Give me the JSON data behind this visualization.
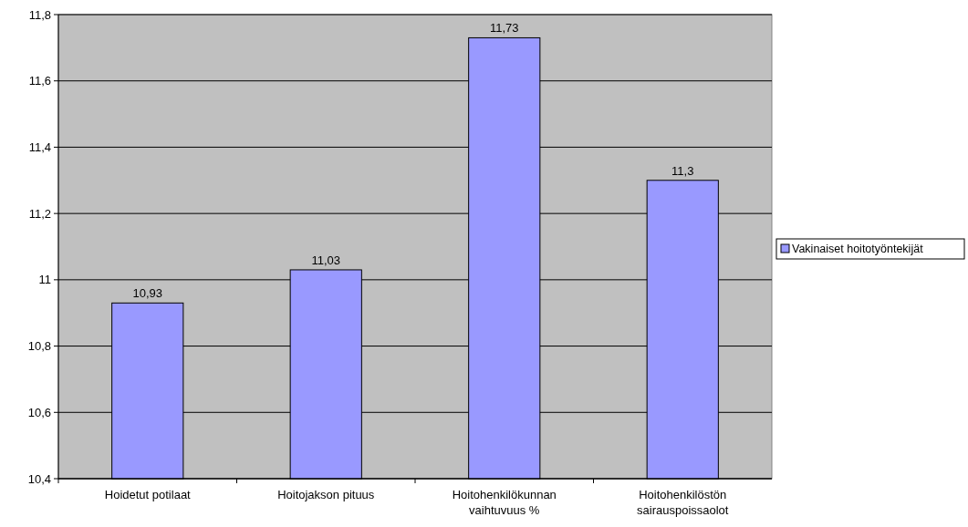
{
  "chart_data": {
    "type": "bar",
    "categories": [
      "Hoidetut potilaat",
      "Hoitojakson pituus",
      "Hoitohenkilökunnan vaihtuvuus %",
      "Hoitohenkilöstön sairauspoissaolot"
    ],
    "series": [
      {
        "name": "Vakinaiset hoitotyöntekijät",
        "color": "#9999ff",
        "values": [
          10.93,
          11.03,
          11.73,
          11.3
        ],
        "value_labels": [
          "10,93",
          "11,03",
          "11,73",
          "11,3"
        ]
      }
    ],
    "ylim": [
      10.4,
      11.8
    ],
    "yticks": [
      {
        "value": 10.4,
        "label": "10,4"
      },
      {
        "value": 10.6,
        "label": "10,6"
      },
      {
        "value": 10.8,
        "label": "10,8"
      },
      11,
      {
        "value": 11.2,
        "label": "11,2"
      },
      {
        "value": 11.4,
        "label": "11,4"
      },
      {
        "value": 11.6,
        "label": "11,6"
      },
      {
        "value": 11.8,
        "label": "11,8"
      }
    ],
    "grid": "y",
    "legend": "right"
  }
}
